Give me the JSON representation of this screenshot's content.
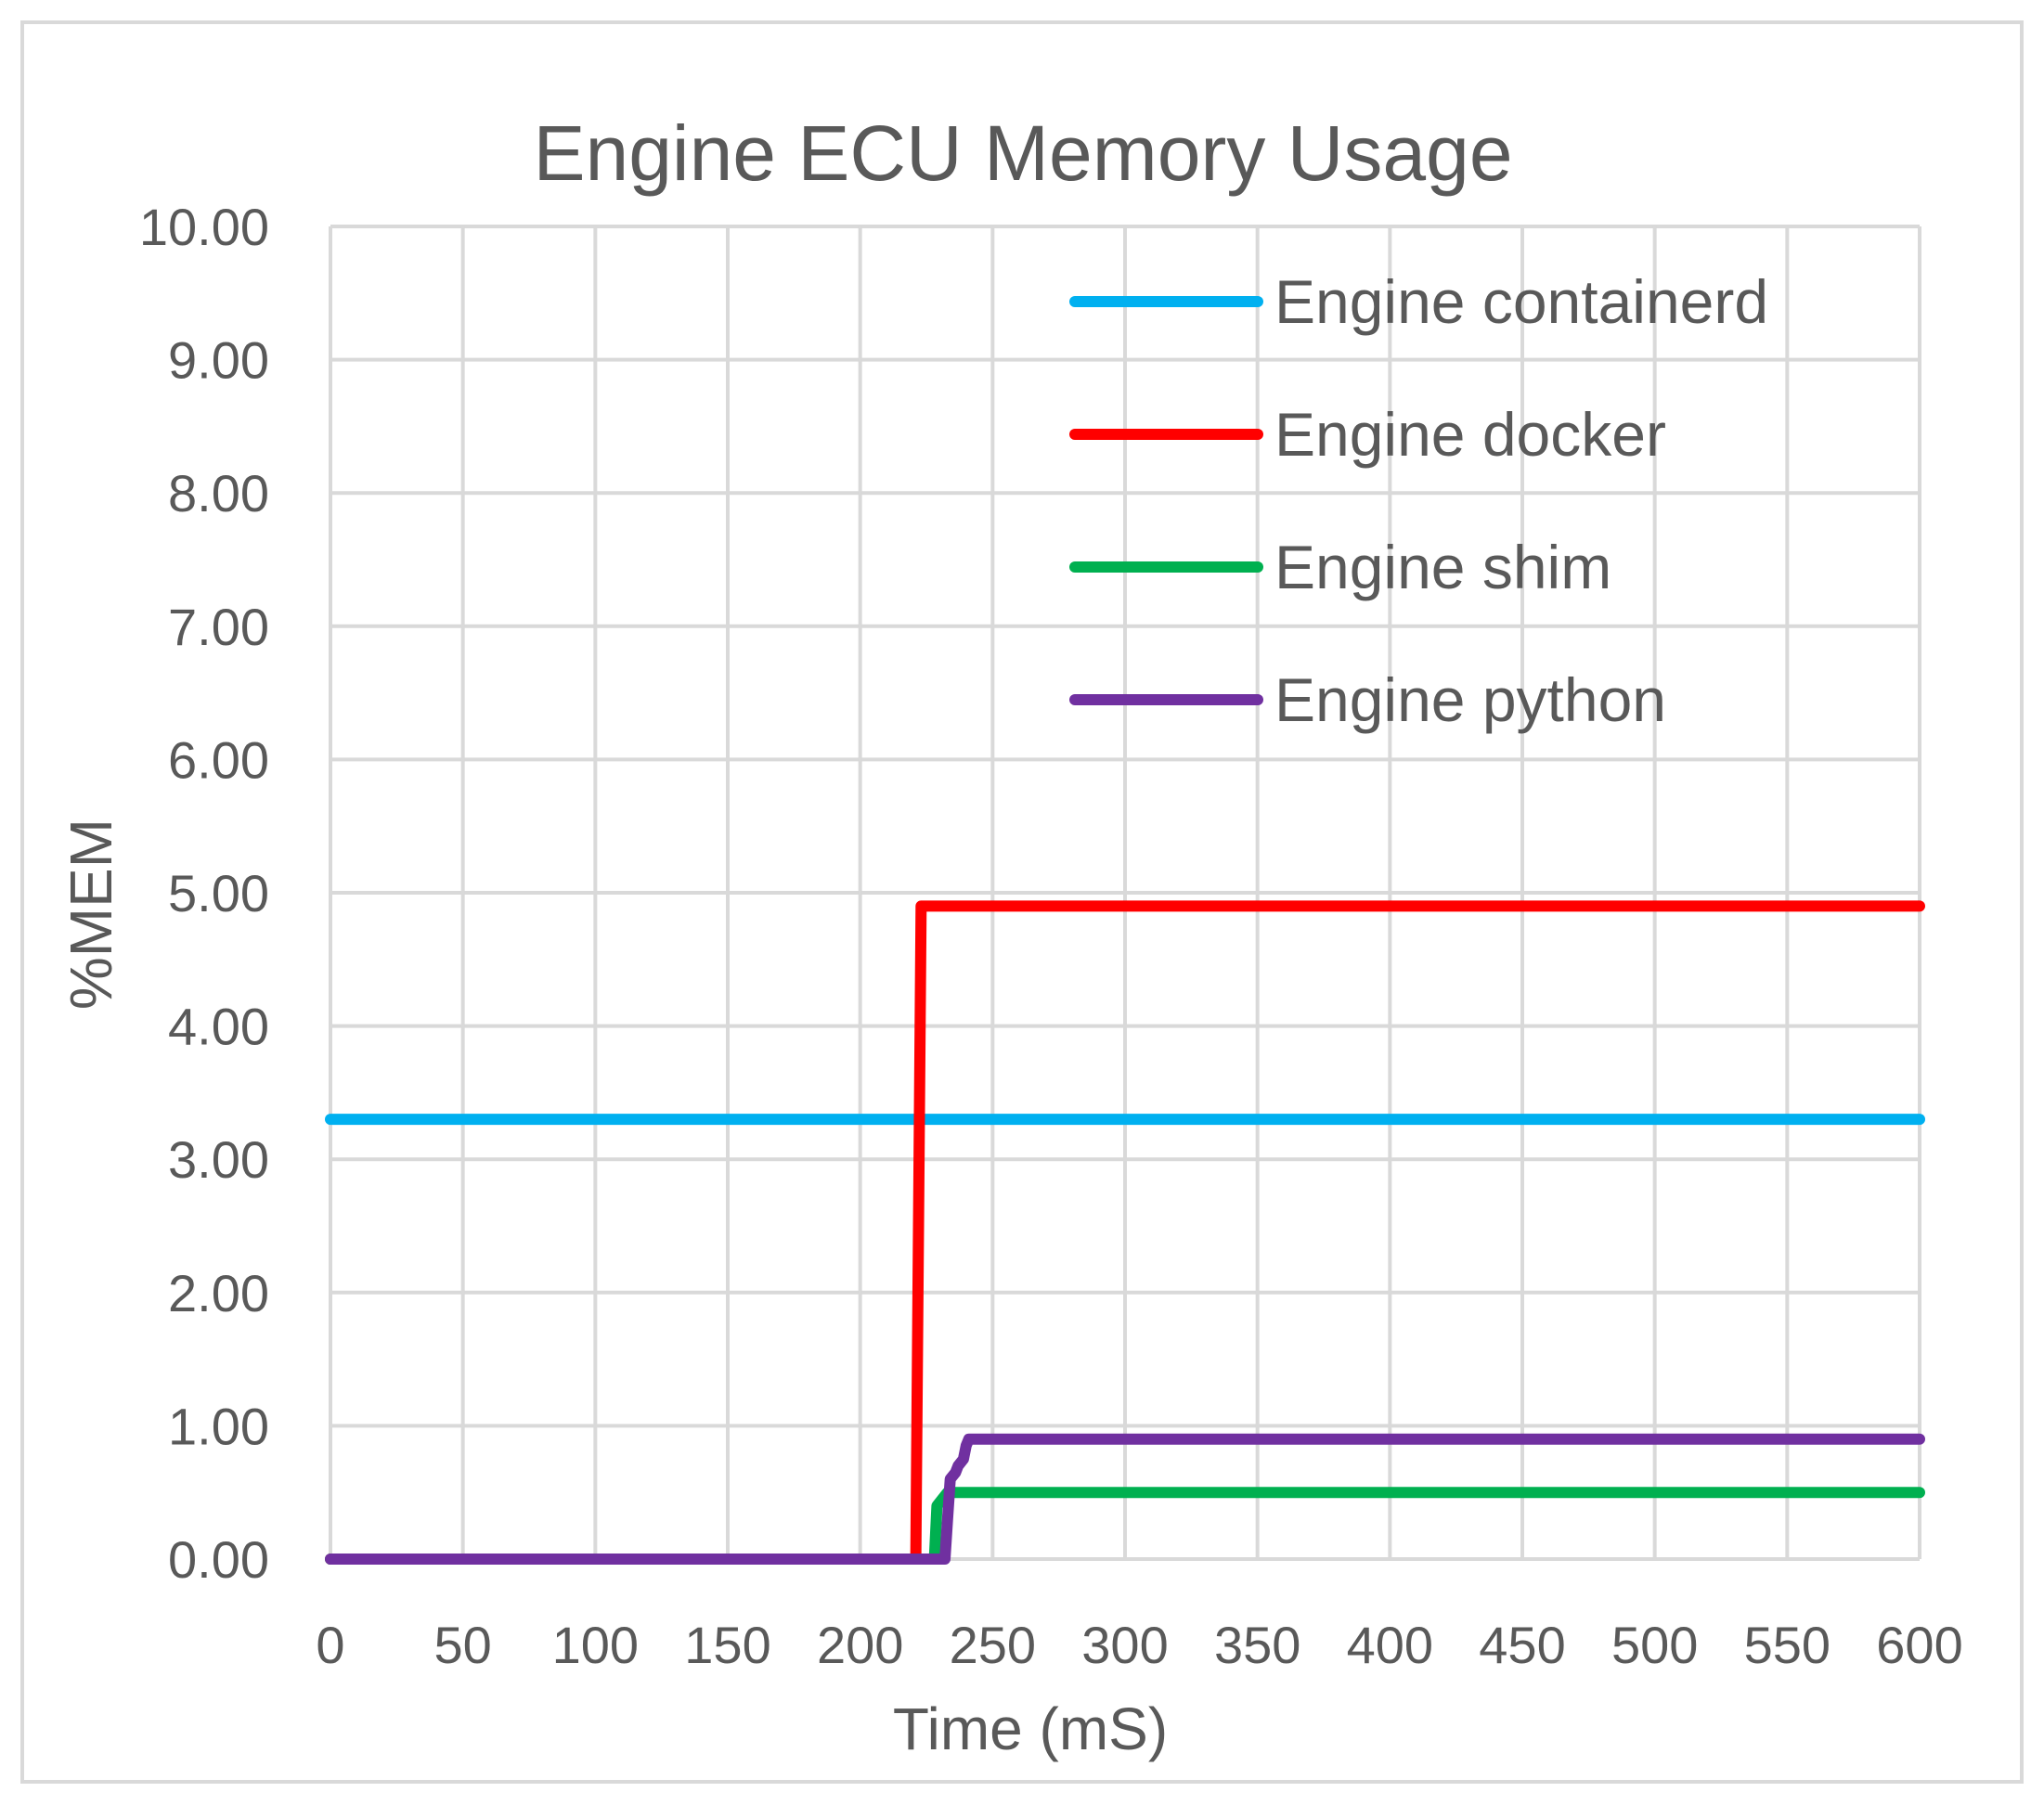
{
  "chart_data": {
    "type": "line",
    "title": "Engine ECU Memory Usage",
    "xlabel": "Time (mS)",
    "ylabel": "%MEM",
    "xlim": [
      0,
      600
    ],
    "ylim": [
      0,
      10
    ],
    "xticks": [
      0,
      50,
      100,
      150,
      200,
      250,
      300,
      350,
      400,
      450,
      500,
      550,
      600
    ],
    "xtick_labels": [
      "0",
      "50",
      "100",
      "150",
      "200",
      "250",
      "300",
      "350",
      "400",
      "450",
      "500",
      "550",
      "600"
    ],
    "yticks": [
      0,
      1,
      2,
      3,
      4,
      5,
      6,
      7,
      8,
      9,
      10
    ],
    "ytick_labels": [
      "0.00",
      "1.00",
      "2.00",
      "3.00",
      "4.00",
      "5.00",
      "6.00",
      "7.00",
      "8.00",
      "9.00",
      "10.00"
    ],
    "grid": true,
    "legend_position": "top-right",
    "series": [
      {
        "name": "Engine containerd",
        "color": "#00b0f0",
        "points": [
          [
            0,
            3.3
          ],
          [
            600,
            3.3
          ]
        ]
      },
      {
        "name": "Engine docker",
        "color": "#ff0000",
        "points": [
          [
            0,
            0
          ],
          [
            221,
            0
          ],
          [
            223,
            4.9
          ],
          [
            600,
            4.9
          ]
        ]
      },
      {
        "name": "Engine shim",
        "color": "#00b050",
        "points": [
          [
            0,
            0
          ],
          [
            228,
            0
          ],
          [
            229,
            0.4
          ],
          [
            231,
            0.45
          ],
          [
            233,
            0.5
          ],
          [
            600,
            0.5
          ]
        ]
      },
      {
        "name": "Engine python",
        "color": "#7030a0",
        "points": [
          [
            0,
            0
          ],
          [
            232,
            0
          ],
          [
            233,
            0.3
          ],
          [
            234,
            0.6
          ],
          [
            236,
            0.65
          ],
          [
            237,
            0.7
          ],
          [
            239,
            0.75
          ],
          [
            240,
            0.85
          ],
          [
            241,
            0.9
          ],
          [
            600,
            0.9
          ]
        ]
      }
    ]
  }
}
